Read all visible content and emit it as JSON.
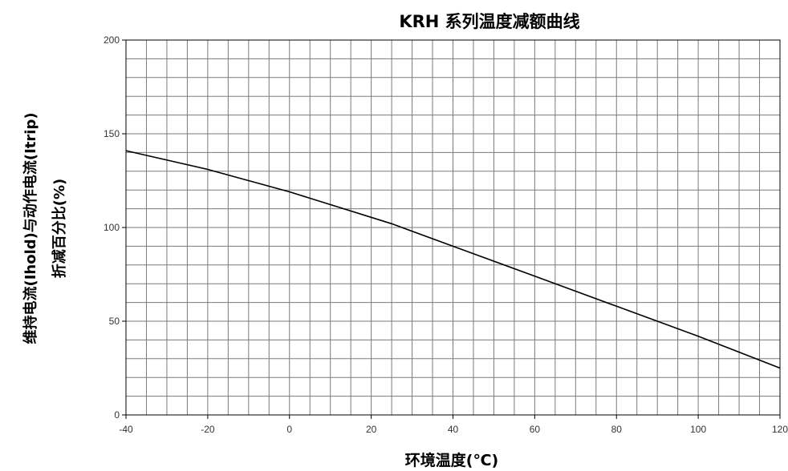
{
  "chart_data": {
    "type": "line",
    "title": "KRH 系列温度减额曲线",
    "xlabel": "环境温度(℃)",
    "ylabel_line1": "维持电流(Ihold)与动作电流(Itrip)",
    "ylabel_line2": "折减百分比(%)",
    "xlim": [
      -40,
      120
    ],
    "ylim": [
      0,
      200
    ],
    "x_ticks": [
      -40,
      -20,
      0,
      20,
      40,
      60,
      80,
      100,
      120
    ],
    "y_ticks": [
      0,
      50,
      100,
      150,
      200
    ],
    "x_tick_labels": [
      "-40",
      "-20",
      "0",
      "20",
      "40",
      "60",
      "80",
      "100",
      "120"
    ],
    "y_tick_labels": [
      "0",
      "50",
      "100",
      "150",
      "200"
    ],
    "grid": true,
    "grid_minor_x_step": 5,
    "grid_minor_y_step": 10,
    "series": [
      {
        "x": [
          -40,
          -20,
          0,
          25,
          40,
          60,
          80,
          100,
          120
        ],
        "y": [
          141,
          131,
          119,
          102,
          90,
          74,
          58,
          42,
          25
        ]
      }
    ]
  }
}
